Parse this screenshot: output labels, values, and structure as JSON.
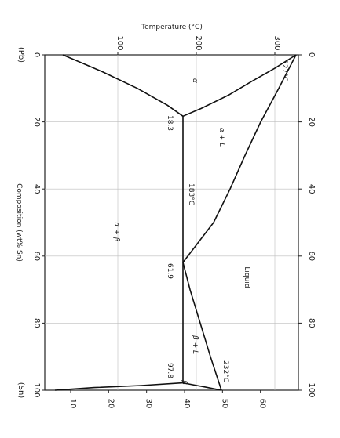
{
  "chart_data": {
    "type": "line",
    "title": "",
    "xlabel": "Composition (wt% Sn)",
    "ylabel": "Temperature (°C)",
    "x_ticks": [
      "0",
      "20",
      "40",
      "60",
      "80",
      "100"
    ],
    "x_end_labels": [
      "(Pb)",
      "(Sn)"
    ],
    "y_ticks": [
      "100",
      "200",
      "300"
    ],
    "x_ticks_secondary": [
      "0",
      "20",
      "40",
      "60",
      "80",
      "100"
    ],
    "y_ticks_secondary": [
      "10",
      "20",
      "30",
      "40",
      "50",
      "60"
    ],
    "xlim": [
      0,
      100
    ],
    "ylim": [
      0,
      327
    ],
    "grid": true,
    "series": [
      {
        "name": "",
        "x": [
          0,
          4,
          8,
          12,
          16,
          18.3
        ],
        "y": [
          327,
          300,
          270,
          241,
          206,
          183
        ]
      },
      {
        "name": "",
        "x": [
          0,
          10,
          20,
          30,
          40,
          50,
          61.9
        ],
        "y": [
          327,
          305,
          282,
          262,
          243,
          222,
          183
        ]
      },
      {
        "name": "",
        "x": [
          61.9,
          70,
          80,
          90,
          100
        ],
        "y": [
          183,
          192,
          205,
          218,
          232
        ]
      },
      {
        "name": "",
        "x": [
          0,
          5,
          10,
          15,
          18.3
        ],
        "y": [
          30,
          80,
          125,
          163,
          183
        ]
      },
      {
        "name": "",
        "x": [
          18.3,
          97.8
        ],
        "y": [
          183,
          183
        ]
      },
      {
        "name": "",
        "x": [
          97.8,
          98.6,
          99.2,
          100
        ],
        "y": [
          183,
          130,
          70,
          20
        ]
      },
      {
        "name": "",
        "x": [
          97.8,
          99,
          100
        ],
        "y": [
          183,
          210,
          232
        ]
      }
    ],
    "annotations": {
      "eutectic_temp": "183°C",
      "pb_melt": "327°C",
      "sn_melt": "232°C",
      "comp_alpha": "18.3",
      "comp_eutectic": "61.9",
      "comp_beta": "97.8"
    },
    "phase_labels": {
      "alpha": "α",
      "alpha_liquid": "α + L",
      "alpha_beta": "α + β",
      "liquid": "Liquid",
      "beta_liquid": "β + L",
      "beta": "β"
    }
  }
}
